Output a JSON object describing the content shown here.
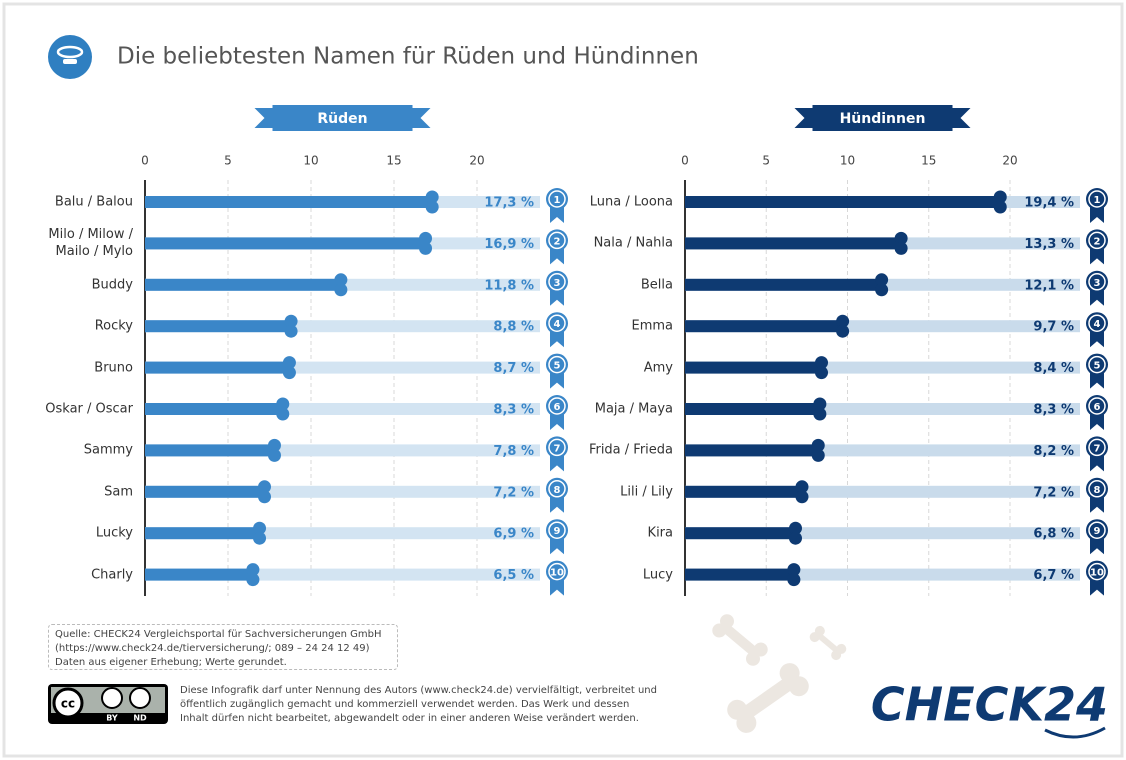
{
  "title": "Die beliebtesten Namen für Rüden und Hündinnen",
  "chart_data": [
    {
      "type": "bar",
      "heading": "Rüden",
      "color": "#3a86c8",
      "track_color": "#d3e4f2",
      "categories": [
        "Balu / Balou",
        "Milo / Milow / Mailo / Mylo",
        "Buddy",
        "Rocky",
        "Bruno",
        "Oskar / Oscar",
        "Sammy",
        "Sam",
        "Lucky",
        "Charly"
      ],
      "values": [
        17.3,
        16.9,
        11.8,
        8.8,
        8.7,
        8.3,
        7.8,
        7.2,
        6.9,
        6.5
      ],
      "value_labels": [
        "17,3 %",
        "16,9 %",
        "11,8 %",
        "8,8 %",
        "8,7 %",
        "8,3 %",
        "7,8 %",
        "7,2 %",
        "6,9 %",
        "6,5 %"
      ],
      "ranks": [
        1,
        2,
        3,
        4,
        5,
        6,
        7,
        8,
        9,
        10
      ],
      "xlim": [
        0,
        20
      ],
      "xticks": [
        0,
        5,
        10,
        15,
        20
      ]
    },
    {
      "type": "bar",
      "heading": "Hündinnen",
      "color": "#0e3a72",
      "track_color": "#c9dbeb",
      "categories": [
        "Luna / Loona",
        "Nala / Nahla",
        "Bella",
        "Emma",
        "Amy",
        "Maja / Maya",
        "Frida / Frieda",
        "Lili / Lily",
        "Kira",
        "Lucy"
      ],
      "values": [
        19.4,
        13.3,
        12.1,
        9.7,
        8.4,
        8.3,
        8.2,
        7.2,
        6.8,
        6.7
      ],
      "value_labels": [
        "19,4 %",
        "13,3 %",
        "12,1 %",
        "9,7 %",
        "8,4 %",
        "8,3 %",
        "8,2 %",
        "7,2 %",
        "6,8 %",
        "6,7 %"
      ],
      "ranks": [
        1,
        2,
        3,
        4,
        5,
        6,
        7,
        8,
        9,
        10
      ],
      "xlim": [
        0,
        20
      ],
      "xticks": [
        0,
        5,
        10,
        15,
        20
      ]
    }
  ],
  "source": [
    "Quelle: CHECK24 Vergleichsportal für Sachversicherungen GmbH",
    "(https://www.check24.de/tierversicherung/; 089 – 24 24 12 49)",
    "Daten aus eigener Erhebung; Werte gerundet."
  ],
  "license": [
    "Diese Infografik darf unter Nennung des Autors (www.check24.de) vervielfältigt, verbreitet und",
    "öffentlich zugänglich gemacht und kommerziell verwendet werden. Das Werk und dessen",
    "Inhalt dürfen nicht bearbeitet, abgewandelt oder in einer anderen Weise verändert werden."
  ],
  "cc": {
    "badge": "cc",
    "by": "BY",
    "nd": "ND"
  },
  "logo": "CHECK24"
}
